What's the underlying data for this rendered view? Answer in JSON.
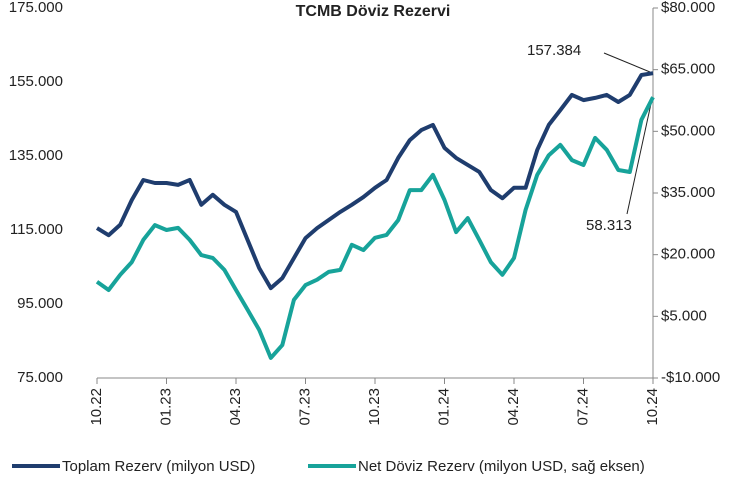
{
  "chart_data": {
    "type": "line",
    "title": "TCMB Döviz Rezervi",
    "categories": [
      "10.22",
      null,
      null,
      null,
      null,
      null,
      "01.23",
      null,
      null,
      null,
      null,
      null,
      "04.23",
      null,
      null,
      null,
      null,
      null,
      "07.23",
      null,
      null,
      null,
      null,
      null,
      "10.23",
      null,
      null,
      null,
      null,
      null,
      "01.24",
      null,
      null,
      null,
      null,
      null,
      "04.24",
      null,
      null,
      null,
      null,
      null,
      "07.24",
      null,
      null,
      null,
      null,
      null,
      "10.24"
    ],
    "series": [
      {
        "name": "Toplam Rezerv (milyon USD)",
        "color": "#1f3d6e",
        "axis": "y",
        "values": [
          115500,
          113600,
          116400,
          123100,
          128500,
          127700,
          127700,
          127200,
          128500,
          121800,
          124500,
          121800,
          119900,
          112300,
          104700,
          99300,
          102000,
          107400,
          112800,
          115500,
          117700,
          119900,
          121800,
          123900,
          126400,
          128500,
          134500,
          139300,
          142000,
          143400,
          137200,
          134500,
          132600,
          130700,
          125800,
          123600,
          126400,
          126400,
          136600,
          143400,
          147400,
          151500,
          150100,
          150700,
          151500,
          149600,
          151500,
          156900,
          157384
        ]
      },
      {
        "name": "Net Döviz Rezerv (milyon USD, sağ eksen)",
        "color": "#17a39a",
        "axis": "y2",
        "values": [
          13400,
          11400,
          15100,
          18200,
          23600,
          27200,
          26000,
          26500,
          23600,
          19900,
          19200,
          16300,
          11400,
          6600,
          1700,
          -5100,
          -2000,
          9000,
          12600,
          13900,
          15800,
          16300,
          22400,
          21100,
          24100,
          24800,
          28400,
          35700,
          35700,
          39400,
          33300,
          25500,
          28900,
          23600,
          18200,
          15100,
          19200,
          30900,
          39400,
          44200,
          46700,
          43000,
          41800,
          48400,
          45500,
          40600,
          40100,
          52800,
          58313
        ]
      }
    ],
    "ylim": [
      75000,
      175000
    ],
    "yticks": [
      {
        "value": 175000,
        "label": "175.000"
      },
      {
        "value": 155000,
        "label": "155.000"
      },
      {
        "value": 135000,
        "label": "135.000"
      },
      {
        "value": 115000,
        "label": "115.000"
      },
      {
        "value": 95000,
        "label": "95.000"
      },
      {
        "value": 75000,
        "label": "75.000"
      }
    ],
    "y2lim": [
      -10000,
      80000
    ],
    "y2ticks": [
      {
        "value": 80000,
        "label": "$80.000"
      },
      {
        "value": 65000,
        "label": "$65.000"
      },
      {
        "value": 50000,
        "label": "$50.000"
      },
      {
        "value": 35000,
        "label": "$35.000"
      },
      {
        "value": 20000,
        "label": "$20.000"
      },
      {
        "value": 5000,
        "label": "$5.000"
      },
      {
        "value": -10000,
        "label": "-$10.000"
      }
    ],
    "annotations": [
      "157.384",
      "58.313"
    ]
  }
}
